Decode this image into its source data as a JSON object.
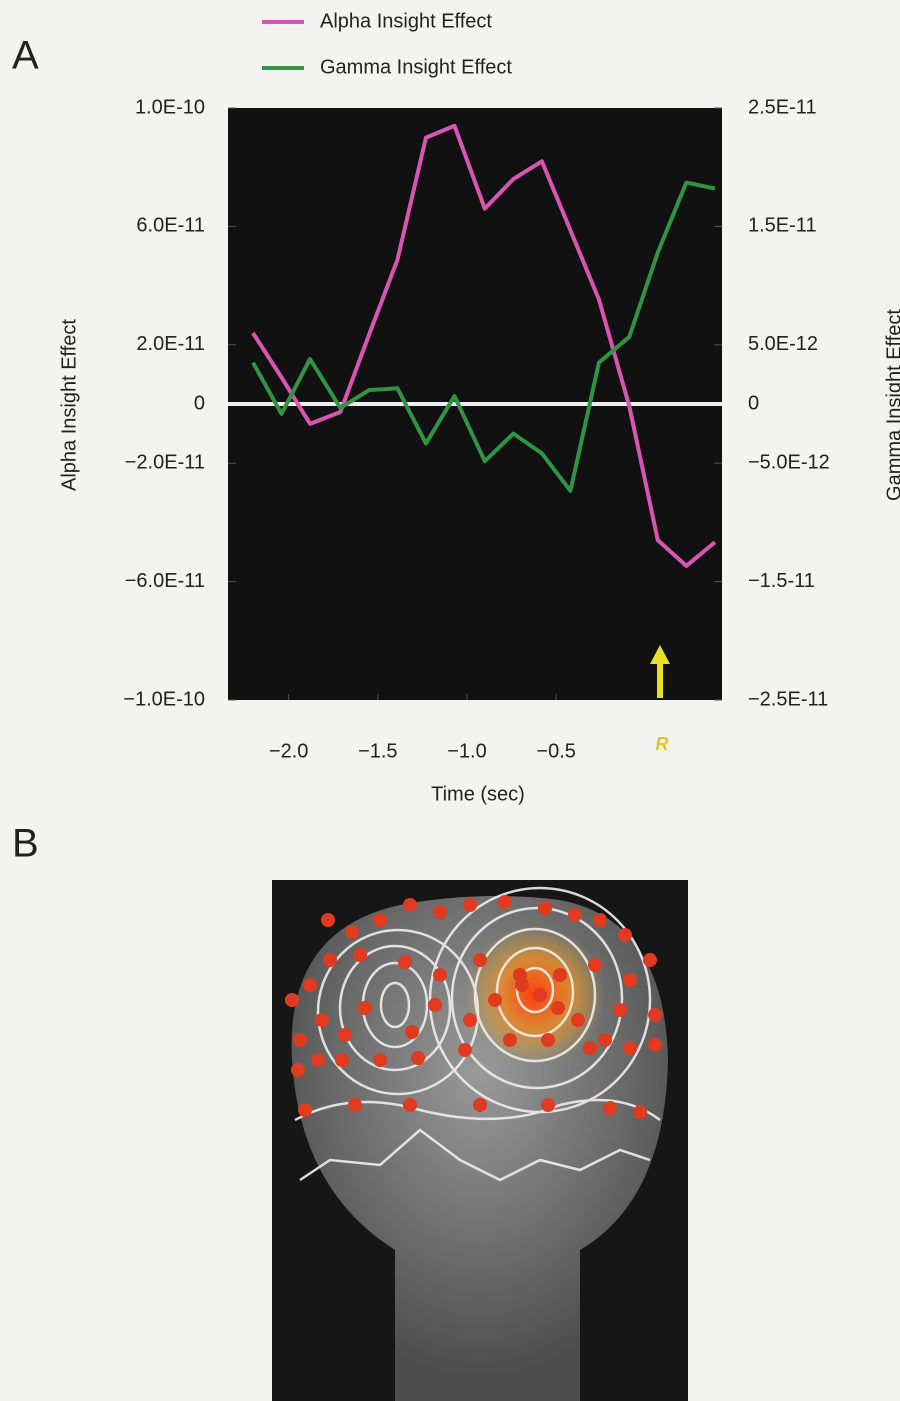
{
  "panel_labels": [
    "A",
    "B"
  ],
  "chart_data": {
    "type": "line",
    "legend": "top",
    "zero_line": true,
    "x_label": "Time (sec)",
    "y_label": "Alpha Insight Effect",
    "y2_label": "Gamma Insight Effect",
    "annotation": "R",
    "x": [
      -2.2,
      -2.04,
      -1.88,
      -1.71,
      -1.55,
      -1.39,
      -1.23,
      -1.07,
      -0.9,
      -0.74,
      -0.58,
      -0.42,
      -0.26,
      -0.09,
      0.07,
      0.23,
      0.39
    ],
    "series": [
      {
        "name": "Alpha Insight Effect",
        "color": "#d955b4",
        "axis": "y",
        "values": [
          2.4e-11,
          9e-12,
          -6.7e-12,
          -2.7e-12,
          2.33e-11,
          4.87e-11,
          9e-11,
          9.4e-11,
          6.6e-11,
          7.6e-11,
          8.2e-11,
          5.87e-11,
          3.53e-11,
          -7e-13,
          -4.6e-11,
          -5.47e-11,
          -4.67e-11
        ]
      },
      {
        "name": "Gamma Insight Effect",
        "color": "#2f9443",
        "axis": "y2",
        "values": [
          3.5e-12,
          -8.3e-13,
          3.8e-12,
          -3.3e-13,
          1.17e-12,
          1.33e-12,
          -3.33e-12,
          6.7e-13,
          -4.83e-12,
          -2.5e-12,
          -4.17e-12,
          -7.33e-12,
          3.5e-12,
          5.67e-12,
          1.28e-11,
          1.87e-11,
          1.82e-11
        ]
      }
    ],
    "xlim": [
      -2.34,
      0.43
    ],
    "xticks": [
      {
        "value": -2.0,
        "label": "−2.0"
      },
      {
        "value": -1.5,
        "label": "−1.5"
      },
      {
        "value": -1.0,
        "label": "−1.0"
      },
      {
        "value": -0.5,
        "label": "−0.5"
      }
    ],
    "ylim": [
      -1e-10,
      1e-10
    ],
    "yticks": [
      {
        "value": 1e-10,
        "label": "1.0E-10"
      },
      {
        "value": 6e-11,
        "label": "6.0E-11"
      },
      {
        "value": 2e-11,
        "label": "2.0E-11"
      },
      0,
      {
        "value": -2e-11,
        "label": "−2.0E-11"
      },
      {
        "value": -6e-11,
        "label": "−6.0E-11"
      },
      {
        "value": -1e-10,
        "label": "−1.0E-10"
      }
    ],
    "y2lim": [
      -2.5e-11,
      2.5e-11
    ],
    "y2ticks": [
      {
        "value": 2.5e-11,
        "label": "2.5E-11"
      },
      {
        "value": 1.5e-11,
        "label": "1.5E-11"
      },
      {
        "value": 5e-12,
        "label": "5.0E-12"
      },
      0,
      {
        "value": -5e-12,
        "label": "−5.0E-12"
      },
      {
        "value": -1.5e-11,
        "label": "−1.5-11"
      },
      {
        "value": -2.5e-11,
        "label": "−2.5E-11"
      }
    ]
  }
}
